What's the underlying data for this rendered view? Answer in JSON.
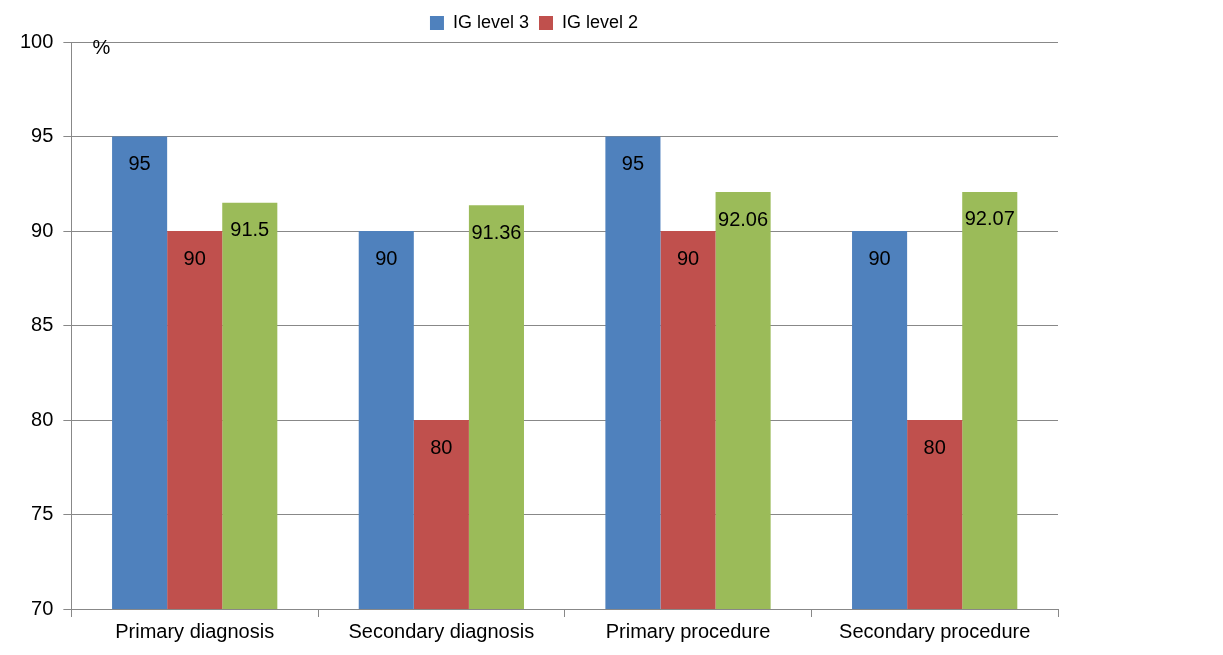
{
  "chart_data": {
    "type": "bar",
    "ylabel": "%",
    "categories": [
      "Primary diagnosis",
      "Secondary diagnosis",
      "Primary procedure",
      "Secondary procedure"
    ],
    "series": [
      {
        "name": "IG level 3",
        "color": "#4f81bd",
        "values": [
          95,
          90,
          95,
          90
        ]
      },
      {
        "name": "IG level 2",
        "color": "#c0504d",
        "values": [
          90,
          80,
          90,
          80
        ]
      },
      {
        "color": "#9bbb59",
        "values": [
          91.5,
          91.36,
          92.06,
          92.07
        ]
      }
    ],
    "ylim": [
      70,
      100
    ],
    "yticks": [
      70,
      75,
      80,
      85,
      90,
      95,
      100
    ],
    "grid": "y",
    "legend": "top",
    "data_labels": true
  }
}
